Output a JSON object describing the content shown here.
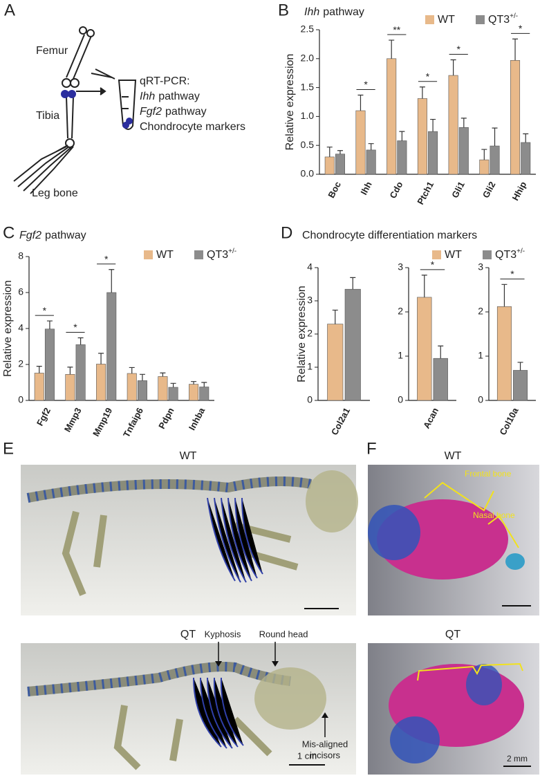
{
  "panel_labels": [
    "A",
    "B",
    "C",
    "D",
    "E",
    "F"
  ],
  "panel_a": {
    "femur": "Femur",
    "tibia": "Tibia",
    "leg_bone": "Leg bone",
    "qpcr": "qRT-PCR:",
    "lines": [
      {
        "italic": "Ihh",
        "text": "pathway"
      },
      {
        "italic": "Fgf2",
        "text": "pathway"
      },
      {
        "italic": "",
        "text": "Chondrocyte markers"
      }
    ]
  },
  "chart_data": [
    {
      "type": "bar",
      "title_italic": "Ihh",
      "title": "pathway",
      "ylabel": "Relative expression",
      "categories": [
        "Boc",
        "Ihh",
        "Cdo",
        "Ptch1",
        "Gli1",
        "Gli2",
        "Hhip"
      ],
      "series": [
        {
          "name": "WT",
          "color": "#e8b98a",
          "values": [
            0.3,
            1.1,
            2.0,
            1.31,
            1.71,
            0.25,
            1.97
          ],
          "errors": [
            0.17,
            0.27,
            0.32,
            0.2,
            0.27,
            0.18,
            0.37
          ]
        },
        {
          "name": "QT3",
          "name_sup": "+/-",
          "color": "#8c8c8c",
          "values": [
            0.35,
            0.42,
            0.58,
            0.74,
            0.81,
            0.49,
            0.55
          ],
          "errors": [
            0.06,
            0.11,
            0.16,
            0.21,
            0.16,
            0.31,
            0.15
          ]
        }
      ],
      "ylim": [
        0,
        2.5
      ],
      "yticks": [
        {
          "value": 0,
          "label": "0.0"
        },
        {
          "value": 0.5,
          "label": "0.5"
        },
        {
          "value": 1,
          "label": "1.0"
        },
        {
          "value": 1.5,
          "label": "1.5"
        },
        {
          "value": 2,
          "label": "2.0"
        },
        {
          "value": 2.5,
          "label": "2.5"
        }
      ],
      "annotations": [
        {
          "text": "*",
          "category": "Ihh"
        },
        {
          "text": "**",
          "category": "Cdo"
        },
        {
          "text": "*",
          "category": "Ptch1"
        },
        {
          "text": "*",
          "category": "Gli1"
        },
        {
          "text": "*",
          "category": "Hhip"
        }
      ]
    },
    {
      "type": "bar",
      "title_italic": "Fgf2",
      "title": "pathway",
      "ylabel": "Relative expression",
      "categories": [
        "Fgf2",
        "Mmp3",
        "Mmp19",
        "Tnfaip6",
        "Pdpn",
        "Inhba"
      ],
      "series": [
        {
          "name": "WT",
          "color": "#e8b98a",
          "values": [
            1.52,
            1.45,
            2.02,
            1.5,
            1.33,
            0.9
          ],
          "errors": [
            0.38,
            0.4,
            0.6,
            0.33,
            0.2,
            0.15
          ]
        },
        {
          "name": "QT3",
          "name_sup": "+/-",
          "color": "#8c8c8c",
          "values": [
            3.97,
            3.1,
            6.0,
            1.1,
            0.73,
            0.75
          ],
          "errors": [
            0.45,
            0.38,
            1.28,
            0.35,
            0.22,
            0.25
          ]
        }
      ],
      "ylim": [
        0,
        8
      ],
      "yticks": [
        0,
        2,
        4,
        6,
        8
      ],
      "annotations": [
        {
          "text": "*",
          "category": "Fgf2"
        },
        {
          "text": "*",
          "category": "Mmp3"
        },
        {
          "text": "*",
          "category": "Mmp19"
        }
      ]
    },
    {
      "type": "bar-facets",
      "title_italic": "",
      "title": "Chondrocyte differentiation markers",
      "ylabel": "Relative expression",
      "series": [
        {
          "name": "WT",
          "color": "#e8b98a"
        },
        {
          "name": "QT3",
          "name_sup": "+/-",
          "color": "#8c8c8c"
        }
      ],
      "facets": [
        {
          "category": "Col2a1",
          "ylim": [
            0,
            4
          ],
          "yticks": [
            0,
            1,
            2,
            3,
            4
          ],
          "values": [
            2.3,
            3.35
          ],
          "errors": [
            0.42,
            0.35
          ]
        },
        {
          "category": "Acan",
          "ylim": [
            0,
            3
          ],
          "yticks": [
            0,
            1,
            2,
            3
          ],
          "values": [
            2.33,
            0.95
          ],
          "errors": [
            0.5,
            0.28
          ],
          "annotation": "*"
        },
        {
          "category": "Col10a",
          "ylim": [
            0,
            3
          ],
          "yticks": [
            0,
            1,
            2,
            3
          ],
          "values": [
            2.12,
            0.68
          ],
          "errors": [
            0.5,
            0.18
          ],
          "annotation": "*"
        }
      ]
    }
  ],
  "panel_e": {
    "wt_label": "WT",
    "qt_label": "QT",
    "kyphosis": "Kyphosis",
    "round_head": "Round head",
    "incisors": [
      "Mis-aligned",
      "incisors"
    ],
    "scale_bar": "1 cm"
  },
  "panel_f": {
    "wt_label": "WT",
    "qt_label": "QT",
    "frontal_bone": "Frontal bone",
    "nasal_bone": "Nasal bone",
    "scale_bar": "2 mm"
  }
}
